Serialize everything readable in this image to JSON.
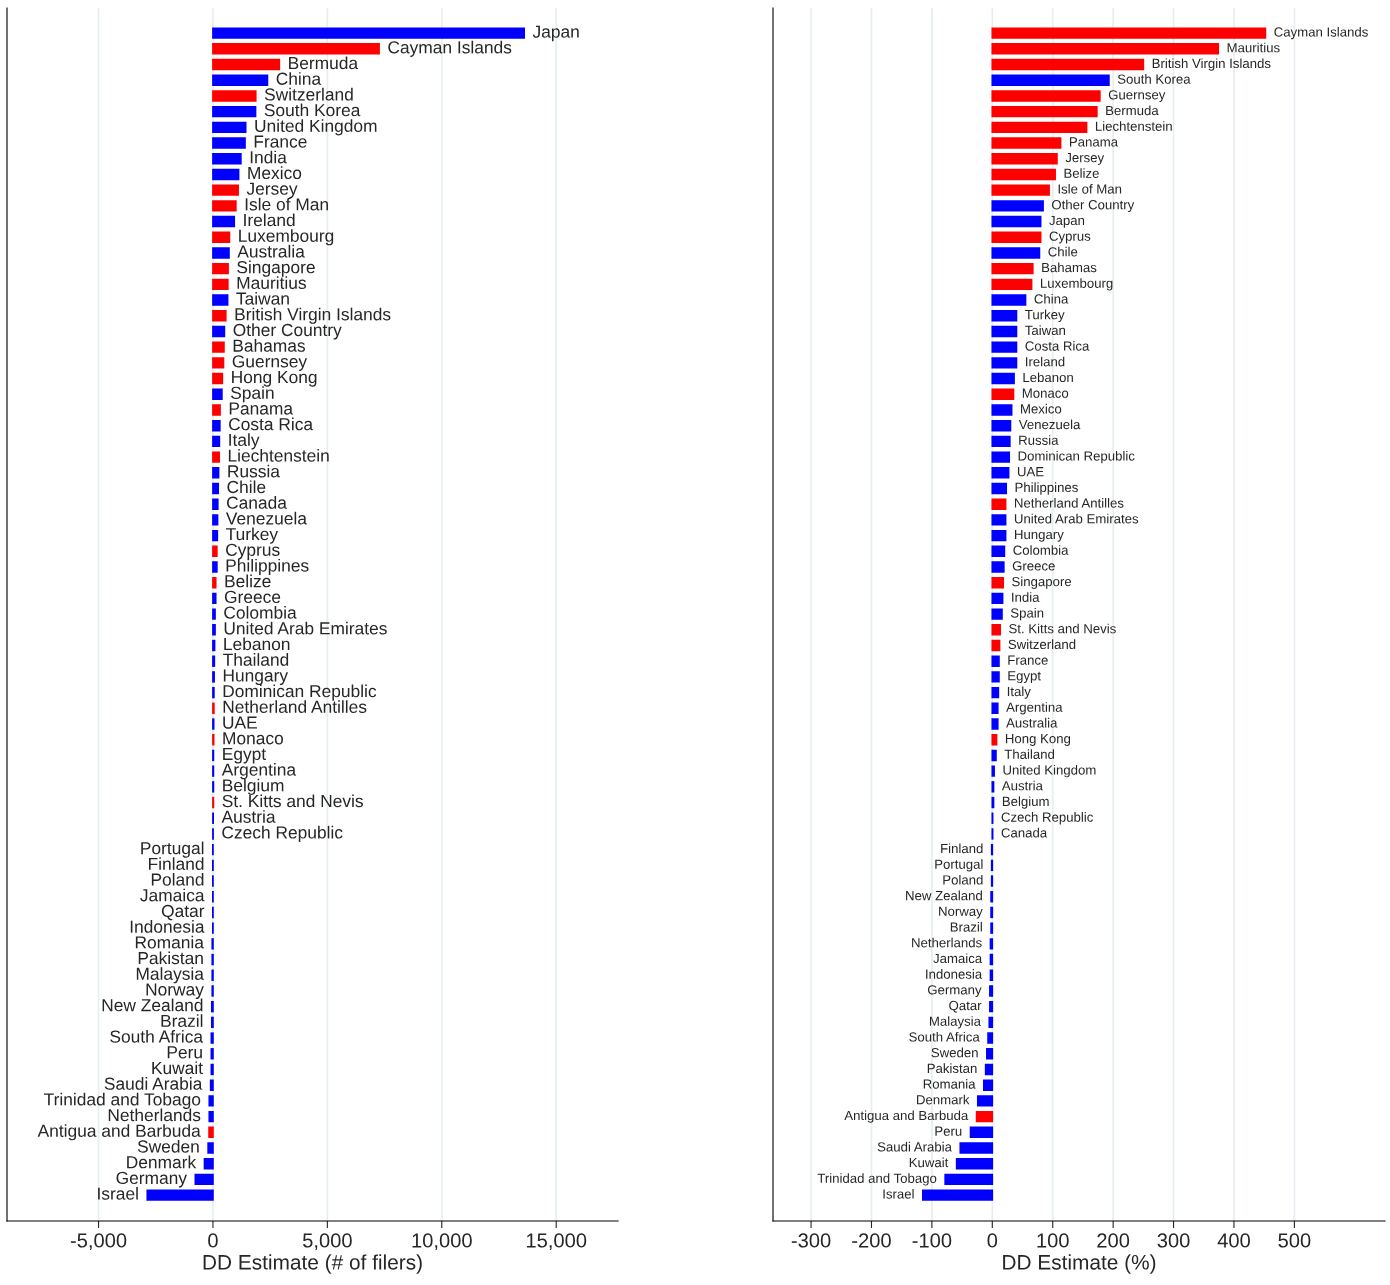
{
  "chart_data": [
    {
      "type": "bar",
      "orientation": "horizontal",
      "xlabel": "DD Estimate (# of filers)",
      "xlim": [
        -9000,
        17700
      ],
      "xticks": [
        {
          "value": -5000,
          "label": "-5,000"
        },
        0,
        {
          "value": 5000,
          "label": "5,000"
        },
        {
          "value": 10000,
          "label": "10,000"
        },
        {
          "value": 15000,
          "label": "15,000"
        }
      ],
      "grid": "x",
      "tick_labels": "x",
      "categories": [
        "Japan",
        "Cayman Islands",
        "Bermuda",
        "China",
        "Switzerland",
        "South Korea",
        "United Kingdom",
        "France",
        "India",
        "Mexico",
        "Jersey",
        "Isle of Man",
        "Ireland",
        "Luxembourg",
        "Australia",
        "Singapore",
        "Mauritius",
        "Taiwan",
        "British Virgin Islands",
        "Other Country",
        "Bahamas",
        "Guernsey",
        "Hong Kong",
        "Spain",
        "Panama",
        "Costa Rica",
        "Italy",
        "Liechtenstein",
        "Russia",
        "Chile",
        "Canada",
        "Venezuela",
        "Turkey",
        "Cyprus",
        "Philippines",
        "Belize",
        "Greece",
        "Colombia",
        "United Arab Emirates",
        "Lebanon",
        "Thailand",
        "Hungary",
        "Dominican Republic",
        "Netherland Antilles",
        "UAE",
        "Monaco",
        "Egypt",
        "Argentina",
        "Belgium",
        "St. Kitts and Nevis",
        "Austria",
        "Czech Republic",
        "Portugal",
        "Finland",
        "Poland",
        "Jamaica",
        "Qatar",
        "Indonesia",
        "Romania",
        "Pakistan",
        "Malaysia",
        "Norway",
        "New Zealand",
        "Brazil",
        "South Africa",
        "Peru",
        "Kuwait",
        "Saudi Arabia",
        "Trinidad and Tobago",
        "Netherlands",
        "Antigua and Barbuda",
        "Sweden",
        "Denmark",
        "Germany",
        "Israel"
      ],
      "values": [
        13600,
        7260,
        2900,
        2380,
        1870,
        1860,
        1430,
        1400,
        1220,
        1120,
        1100,
        1000,
        930,
        720,
        700,
        660,
        650,
        640,
        560,
        500,
        480,
        460,
        410,
        390,
        310,
        300,
        280,
        270,
        245,
        230,
        210,
        200,
        190,
        170,
        170,
        120,
        120,
        90,
        90,
        70,
        60,
        50,
        40,
        40,
        30,
        30,
        20,
        20,
        20,
        20,
        10,
        5,
        -5,
        -5,
        -5,
        -5,
        -5,
        -5,
        -30,
        -30,
        -30,
        -30,
        -50,
        -50,
        -70,
        -70,
        -70,
        -100,
        -160,
        -160,
        -170,
        -210,
        -370,
        -770,
        -2870
      ],
      "colors": [
        "#0000ff",
        "#ff0000",
        "#ff0000",
        "#0000ff",
        "#ff0000",
        "#0000ff",
        "#0000ff",
        "#0000ff",
        "#0000ff",
        "#0000ff",
        "#ff0000",
        "#ff0000",
        "#0000ff",
        "#ff0000",
        "#0000ff",
        "#ff0000",
        "#ff0000",
        "#0000ff",
        "#ff0000",
        "#0000ff",
        "#ff0000",
        "#ff0000",
        "#ff0000",
        "#0000ff",
        "#ff0000",
        "#0000ff",
        "#0000ff",
        "#ff0000",
        "#0000ff",
        "#0000ff",
        "#0000ff",
        "#0000ff",
        "#0000ff",
        "#ff0000",
        "#0000ff",
        "#ff0000",
        "#0000ff",
        "#0000ff",
        "#0000ff",
        "#0000ff",
        "#0000ff",
        "#0000ff",
        "#0000ff",
        "#ff0000",
        "#0000ff",
        "#ff0000",
        "#0000ff",
        "#0000ff",
        "#0000ff",
        "#ff0000",
        "#0000ff",
        "#0000ff",
        "#0000ff",
        "#0000ff",
        "#0000ff",
        "#0000ff",
        "#0000ff",
        "#0000ff",
        "#0000ff",
        "#0000ff",
        "#0000ff",
        "#0000ff",
        "#0000ff",
        "#0000ff",
        "#0000ff",
        "#0000ff",
        "#0000ff",
        "#0000ff",
        "#0000ff",
        "#0000ff",
        "#ff0000",
        "#0000ff",
        "#0000ff",
        "#0000ff",
        "#0000ff"
      ]
    },
    {
      "type": "bar",
      "orientation": "horizontal",
      "xlabel": "DD Estimate (%)",
      "xlim": [
        -363,
        650
      ],
      "xticks": [
        -300,
        -200,
        -100,
        0,
        100,
        200,
        300,
        400,
        500
      ],
      "grid": "x",
      "tick_labels": "x",
      "categories": [
        "Cayman Islands",
        "Mauritius",
        "British Virgin Islands",
        "South Korea",
        "Guernsey",
        "Bermuda",
        "Liechtenstein",
        "Panama",
        "Jersey",
        "Belize",
        "Isle of Man",
        "Other Country",
        "Japan",
        "Cyprus",
        "Chile",
        "Bahamas",
        "Luxembourg",
        "China",
        "Turkey",
        "Taiwan",
        "Costa Rica",
        "Ireland",
        "Lebanon",
        "Monaco",
        "Mexico",
        "Venezuela",
        "Russia",
        "Dominican Republic",
        "UAE",
        "Philippines",
        "Netherland Antilles",
        "United Arab Emirates",
        "Hungary",
        "Colombia",
        "Greece",
        "Singapore",
        "India",
        "Spain",
        "St. Kitts and Nevis",
        "Switzerland",
        "France",
        "Egypt",
        "Italy",
        "Argentina",
        "Australia",
        "Hong Kong",
        "Thailand",
        "United Kingdom",
        "Austria",
        "Belgium",
        "Czech Republic",
        "Canada",
        "Finland",
        "Portugal",
        "Poland",
        "New Zealand",
        "Norway",
        "Brazil",
        "Netherlands",
        "Jamaica",
        "Indonesia",
        "Germany",
        "Qatar",
        "Malaysia",
        "South Africa",
        "Sweden",
        "Pakistan",
        "Romania",
        "Denmark",
        "Antigua and Barbuda",
        "Peru",
        "Saudi Arabia",
        "Kuwait",
        "Trinidad and Tobago",
        "Israel"
      ],
      "values": [
        452,
        374,
        250,
        193,
        178,
        173,
        156,
        113,
        107,
        104,
        94,
        84,
        80,
        80,
        78,
        67,
        65,
        55,
        40,
        40,
        40,
        40,
        36,
        35,
        32,
        30,
        29,
        28,
        27,
        23,
        22,
        22,
        22,
        20,
        19,
        18,
        17,
        16,
        13,
        12,
        11,
        11,
        10,
        9,
        9,
        7,
        6,
        3,
        2,
        2,
        0.5,
        0.5,
        -1,
        -1,
        -1,
        -2,
        -2,
        -2,
        -3,
        -3,
        -3,
        -4,
        -4,
        -5,
        -7,
        -9,
        -11,
        -14,
        -24,
        -26,
        -36,
        -53,
        -59,
        -78,
        -115
      ],
      "colors": [
        "#ff0000",
        "#ff0000",
        "#ff0000",
        "#0000ff",
        "#ff0000",
        "#ff0000",
        "#ff0000",
        "#ff0000",
        "#ff0000",
        "#ff0000",
        "#ff0000",
        "#0000ff",
        "#0000ff",
        "#ff0000",
        "#0000ff",
        "#ff0000",
        "#ff0000",
        "#0000ff",
        "#0000ff",
        "#0000ff",
        "#0000ff",
        "#0000ff",
        "#0000ff",
        "#ff0000",
        "#0000ff",
        "#0000ff",
        "#0000ff",
        "#0000ff",
        "#0000ff",
        "#0000ff",
        "#ff0000",
        "#0000ff",
        "#0000ff",
        "#0000ff",
        "#0000ff",
        "#ff0000",
        "#0000ff",
        "#0000ff",
        "#ff0000",
        "#ff0000",
        "#0000ff",
        "#0000ff",
        "#0000ff",
        "#0000ff",
        "#0000ff",
        "#ff0000",
        "#0000ff",
        "#0000ff",
        "#0000ff",
        "#0000ff",
        "#0000ff",
        "#0000ff",
        "#0000ff",
        "#0000ff",
        "#0000ff",
        "#0000ff",
        "#0000ff",
        "#0000ff",
        "#0000ff",
        "#0000ff",
        "#0000ff",
        "#0000ff",
        "#0000ff",
        "#0000ff",
        "#0000ff",
        "#0000ff",
        "#0000ff",
        "#0000ff",
        "#0000ff",
        "#ff0000",
        "#0000ff",
        "#0000ff",
        "#0000ff",
        "#0000ff",
        "#0000ff"
      ]
    }
  ]
}
